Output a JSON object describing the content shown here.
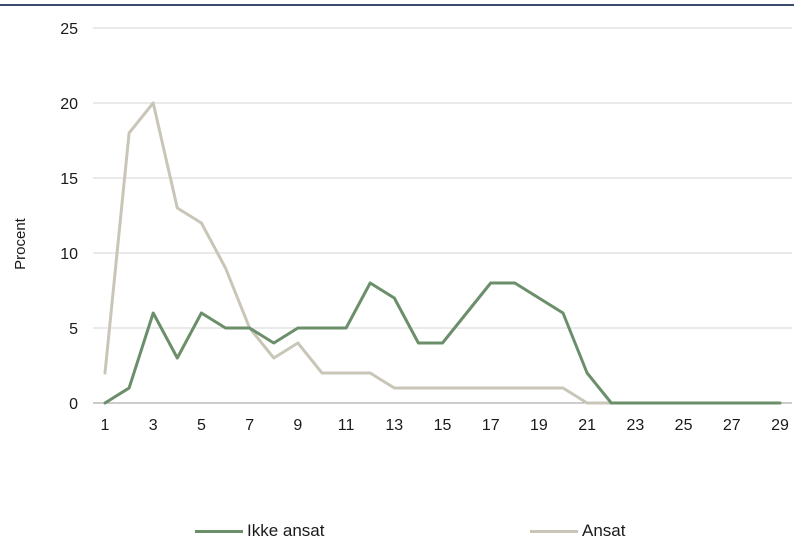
{
  "chart_data": {
    "type": "line",
    "title": "",
    "xlabel": "",
    "ylabel": "Procent",
    "ylim": [
      0,
      25
    ],
    "yticks": [
      0,
      5,
      10,
      15,
      20,
      25
    ],
    "xlim": [
      1,
      29
    ],
    "xticks": [
      1,
      3,
      5,
      7,
      9,
      11,
      13,
      15,
      17,
      19,
      21,
      23,
      25,
      27,
      29
    ],
    "x": [
      1,
      2,
      3,
      4,
      5,
      6,
      7,
      8,
      9,
      10,
      11,
      12,
      13,
      14,
      15,
      16,
      17,
      18,
      19,
      20,
      21,
      22,
      23,
      24,
      25,
      26,
      27,
      28,
      29
    ],
    "grid": true,
    "legend_position": "bottom",
    "series": [
      {
        "name": "Ikke ansat",
        "color": "#6b8e6b",
        "values": [
          0,
          1,
          6,
          3,
          6,
          5,
          5,
          4,
          5,
          5,
          5,
          8,
          7,
          4,
          4,
          6,
          8,
          8,
          7,
          6,
          2,
          0,
          0,
          0,
          0,
          0,
          0,
          0,
          0
        ]
      },
      {
        "name": "Ansat",
        "color": "#c9c6b8",
        "values": [
          2,
          18,
          20,
          13,
          12,
          9,
          5,
          3,
          4,
          2,
          2,
          2,
          1,
          1,
          1,
          1,
          1,
          1,
          1,
          1,
          0,
          0,
          0,
          0,
          0,
          0,
          0,
          0,
          0
        ]
      }
    ]
  }
}
